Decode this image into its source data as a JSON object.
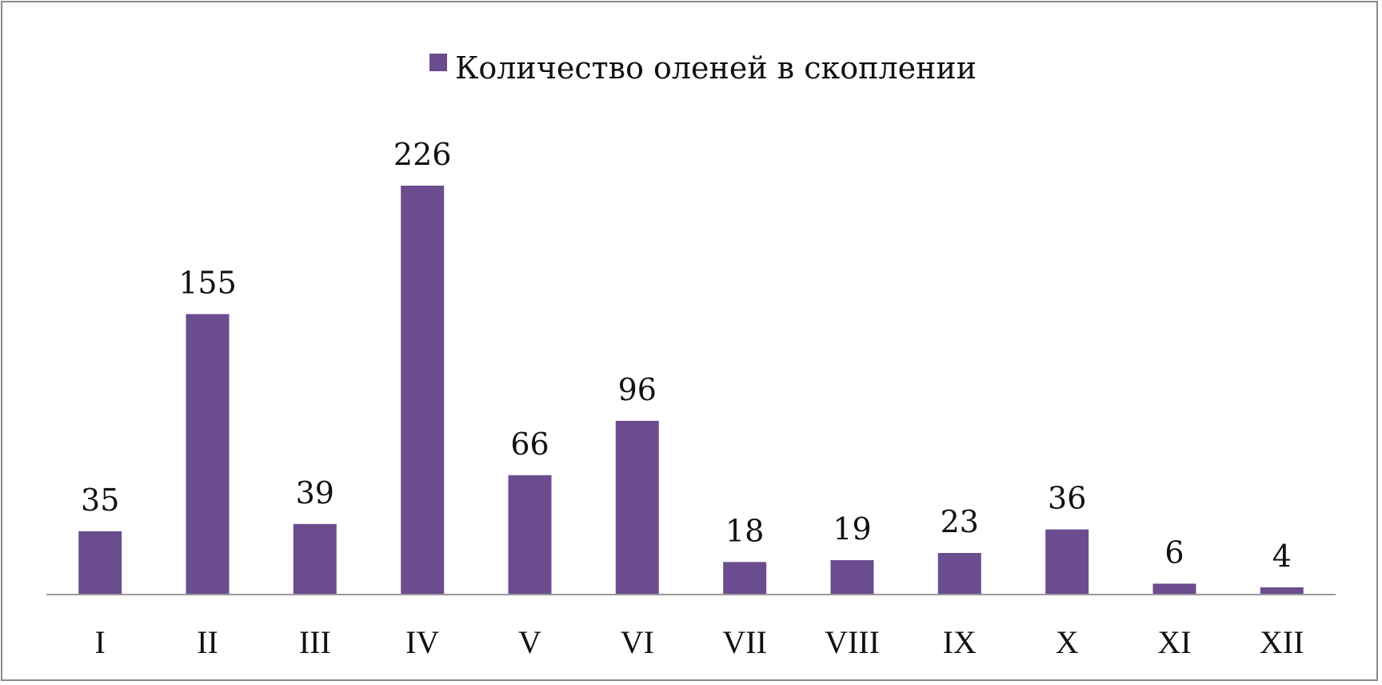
{
  "chart_data": {
    "type": "bar",
    "categories": [
      "I",
      "II",
      "III",
      "IV",
      "V",
      "VI",
      "VII",
      "VIII",
      "IX",
      "X",
      "XI",
      "XII"
    ],
    "series": [
      {
        "name": "Количество оленей в скоплении",
        "values": [
          35,
          155,
          39,
          226,
          66,
          96,
          18,
          19,
          23,
          36,
          6,
          4
        ],
        "color": "#6b4d8f"
      }
    ],
    "legend": {
      "position": "top-center"
    },
    "data_labels": true,
    "ylim": [
      0,
      226
    ],
    "grid": false
  }
}
